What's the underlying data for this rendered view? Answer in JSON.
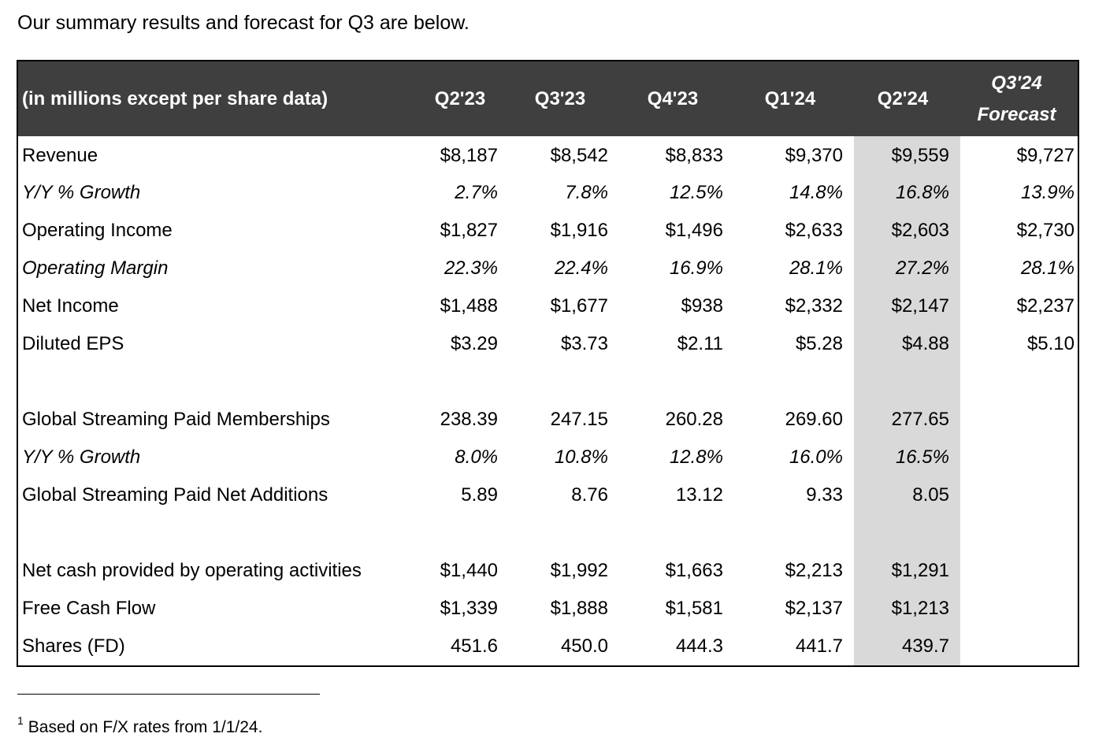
{
  "intro_text": "Our summary results and forecast for Q3 are below.",
  "table": {
    "header_label": "(in millions except per share data)",
    "columns": [
      "Q2'23",
      "Q3'23",
      "Q4'23",
      "Q1'24",
      "Q2'24"
    ],
    "forecast_column": {
      "line1": "Q3'24",
      "line2": "Forecast"
    },
    "rows": [
      {
        "label": "Revenue",
        "values": [
          "$8,187",
          "$8,542",
          "$8,833",
          "$9,370",
          "$9,559",
          "$9,727"
        ]
      },
      {
        "label": "Y/Y % Growth",
        "values": [
          "2.7%",
          "7.8%",
          "12.5%",
          "14.8%",
          "16.8%",
          "13.9%"
        ]
      },
      {
        "label": "Operating Income",
        "values": [
          "$1,827",
          "$1,916",
          "$1,496",
          "$2,633",
          "$2,603",
          "$2,730"
        ]
      },
      {
        "label": "Operating Margin",
        "values": [
          "22.3%",
          "22.4%",
          "16.9%",
          "28.1%",
          "27.2%",
          "28.1%"
        ]
      },
      {
        "label": "Net Income",
        "values": [
          "$1,488",
          "$1,677",
          "$938",
          "$2,332",
          "$2,147",
          "$2,237"
        ]
      },
      {
        "label": "Diluted EPS",
        "values": [
          "$3.29",
          "$3.73",
          "$2.11",
          "$5.28",
          "$4.88",
          "$5.10"
        ]
      },
      {
        "label": "Global Streaming Paid Memberships",
        "values": [
          "238.39",
          "247.15",
          "260.28",
          "269.60",
          "277.65",
          ""
        ]
      },
      {
        "label": "Y/Y % Growth",
        "values": [
          "8.0%",
          "10.8%",
          "12.8%",
          "16.0%",
          "16.5%",
          ""
        ]
      },
      {
        "label": "Global Streaming Paid Net Additions",
        "values": [
          "5.89",
          "8.76",
          "13.12",
          "9.33",
          "8.05",
          ""
        ]
      },
      {
        "label": "Net cash provided by operating activities",
        "values": [
          "$1,440",
          "$1,992",
          "$1,663",
          "$2,213",
          "$1,291",
          ""
        ]
      },
      {
        "label": "Free Cash Flow",
        "values": [
          "$1,339",
          "$1,888",
          "$1,581",
          "$2,137",
          "$1,213",
          ""
        ]
      },
      {
        "label": "Shares (FD)",
        "values": [
          "451.6",
          "450.0",
          "444.3",
          "441.7",
          "439.7",
          ""
        ]
      }
    ]
  },
  "footnote": {
    "marker": "1",
    "text": "Based on F/X rates from 1/1/24."
  },
  "colors": {
    "header_bg": "#3f3f3f",
    "header_text": "#ffffff",
    "highlight_col": "#d9d9d9"
  }
}
